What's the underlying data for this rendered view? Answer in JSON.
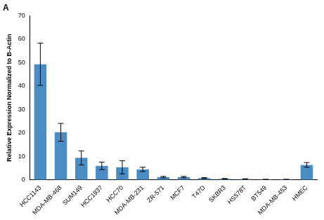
{
  "chart_data": {
    "type": "bar",
    "title": "A",
    "y_label": "Relative Expression Normalized to B-Actin",
    "categories": [
      "HCC1143",
      "MDA-MB-468",
      "SUM149",
      "HCC1937",
      "HCC70",
      "MDA-MB-231",
      "ZR-571",
      "MCF7",
      "T47D",
      "SKBR3",
      "HS578T",
      "BT549",
      "MDA-MB-453",
      "HMEC"
    ],
    "values": [
      49.3,
      20.3,
      9.4,
      6.0,
      5.4,
      4.5,
      1.2,
      1.2,
      0.8,
      0.5,
      0.4,
      0.2,
      0.2,
      6.4
    ],
    "errors": [
      9.0,
      3.8,
      3.0,
      1.6,
      2.8,
      0.9,
      0.3,
      0.3,
      0.2,
      0.1,
      0.1,
      0.05,
      0.05,
      1.0
    ],
    "color": "#4a8cc4",
    "ylim": [
      0,
      70
    ],
    "yticks": [
      0,
      10,
      20,
      30,
      40,
      50,
      60,
      70
    ],
    "grid": false
  }
}
